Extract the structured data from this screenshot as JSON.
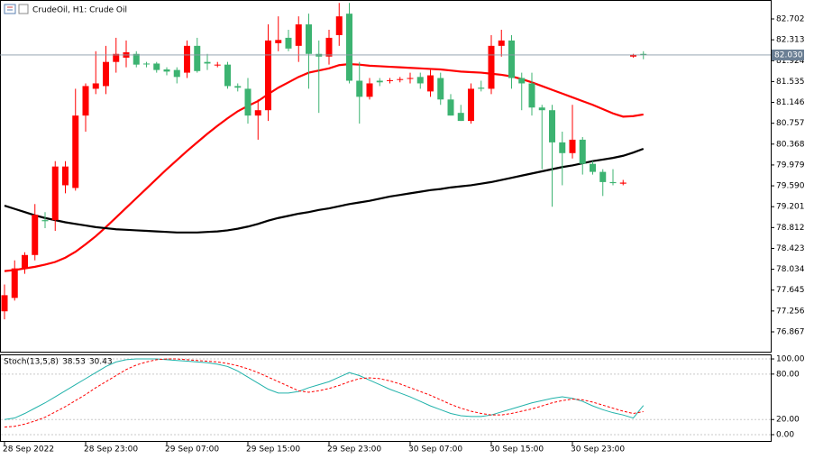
{
  "chart_data": [
    {
      "type": "candlestick",
      "title": "CrudeOil, H1:  Crude Oil",
      "categories": [
        "28 Sep 2022",
        null,
        null,
        null,
        null,
        null,
        null,
        null,
        "28 Sep 23:00",
        null,
        null,
        null,
        null,
        null,
        null,
        null,
        "29 Sep 07:00",
        null,
        null,
        null,
        null,
        null,
        null,
        null,
        "29 Sep 15:00",
        null,
        null,
        null,
        null,
        null,
        null,
        null,
        "29 Sep 23:00",
        null,
        null,
        null,
        null,
        null,
        null,
        null,
        "30 Sep 07:00",
        null,
        null,
        null,
        null,
        null,
        null,
        null,
        "30 Sep 15:00",
        null,
        null,
        null,
        null,
        null,
        null,
        null,
        "30 Sep 23:00",
        null,
        null,
        null,
        null,
        null,
        null,
        null
      ],
      "open": [
        77.25,
        77.5,
        78.05,
        78.3,
        78.95,
        78.95,
        79.6,
        79.55,
        80.9,
        81.4,
        81.45,
        81.9,
        81.98,
        82.05,
        81.87,
        81.87,
        81.76,
        81.75,
        81.7,
        82.2,
        81.9,
        81.84,
        81.85,
        81.45,
        81.4,
        80.9,
        81.0,
        82.25,
        82.35,
        82.2,
        82.6,
        82.05,
        82.0,
        82.4,
        82.8,
        81.55,
        81.25,
        81.55,
        81.55,
        81.57,
        81.6,
        81.62,
        81.35,
        81.6,
        81.2,
        80.95,
        80.8,
        81.42,
        81.4,
        82.2,
        82.3,
        81.6,
        81.5,
        81.05,
        81.0,
        80.4,
        80.2,
        80.45,
        80.0,
        79.85,
        79.66,
        79.63,
        82.0,
        82.05
      ],
      "high": [
        77.75,
        78.2,
        78.35,
        79.25,
        79.1,
        80.05,
        80.05,
        81.4,
        81.5,
        82.1,
        82.2,
        82.35,
        82.3,
        82.1,
        81.9,
        81.9,
        81.8,
        81.8,
        82.3,
        82.35,
        82.05,
        81.9,
        81.9,
        81.5,
        81.6,
        81.2,
        82.6,
        82.75,
        82.5,
        82.75,
        82.8,
        82.3,
        82.5,
        83.0,
        83.0,
        81.9,
        81.6,
        81.6,
        81.6,
        81.62,
        81.7,
        81.7,
        81.75,
        81.7,
        81.3,
        81.1,
        81.5,
        81.55,
        82.4,
        82.5,
        82.4,
        81.7,
        81.7,
        81.1,
        81.1,
        80.6,
        81.1,
        80.5,
        80.05,
        79.9,
        79.9,
        79.7,
        82.05,
        82.1
      ],
      "low": [
        77.1,
        77.45,
        77.95,
        78.2,
        78.8,
        78.75,
        79.45,
        79.5,
        80.6,
        81.3,
        81.3,
        81.7,
        81.8,
        81.8,
        81.8,
        81.7,
        81.65,
        81.5,
        81.6,
        81.7,
        81.75,
        81.8,
        81.4,
        81.35,
        80.75,
        80.45,
        80.8,
        82.1,
        82.1,
        81.9,
        81.4,
        80.95,
        81.85,
        82.2,
        81.5,
        80.75,
        81.2,
        81.45,
        81.5,
        81.52,
        81.5,
        81.4,
        81.25,
        81.1,
        80.9,
        80.8,
        80.75,
        81.35,
        81.3,
        82.0,
        81.4,
        81.0,
        80.9,
        79.9,
        79.2,
        79.6,
        80.1,
        79.8,
        79.8,
        79.4,
        79.6,
        79.6,
        81.98,
        81.95
      ],
      "close": [
        77.55,
        78.05,
        78.3,
        79.05,
        78.93,
        79.95,
        79.95,
        80.9,
        81.45,
        81.5,
        81.9,
        82.05,
        82.08,
        81.85,
        81.86,
        81.75,
        81.72,
        81.62,
        82.2,
        81.73,
        81.87,
        81.85,
        81.45,
        81.42,
        80.9,
        81.0,
        82.3,
        82.31,
        82.15,
        82.6,
        82.05,
        82.0,
        82.35,
        82.75,
        81.55,
        81.25,
        81.5,
        81.52,
        81.56,
        81.58,
        81.6,
        81.5,
        81.65,
        81.2,
        80.9,
        80.8,
        81.4,
        81.4,
        82.2,
        82.3,
        81.6,
        81.5,
        81.05,
        81.0,
        80.4,
        80.2,
        80.45,
        80.0,
        79.85,
        79.66,
        79.64,
        79.65,
        82.03,
        82.03
      ],
      "up_color": "#ff0000",
      "down_color": "#3cb371",
      "overlays": [
        {
          "color": "#ff0000",
          "values": [
            78.0,
            78.02,
            78.05,
            78.08,
            78.12,
            78.17,
            78.25,
            78.36,
            78.5,
            78.65,
            78.82,
            79.0,
            79.18,
            79.36,
            79.54,
            79.72,
            79.9,
            80.07,
            80.24,
            80.4,
            80.56,
            80.71,
            80.85,
            80.98,
            81.08,
            81.17,
            81.3,
            81.42,
            81.52,
            81.62,
            81.7,
            81.74,
            81.78,
            81.84,
            81.86,
            81.85,
            81.83,
            81.82,
            81.81,
            81.8,
            81.79,
            81.78,
            81.77,
            81.76,
            81.74,
            81.72,
            81.71,
            81.7,
            81.68,
            81.66,
            81.63,
            81.58,
            81.52,
            81.45,
            81.38,
            81.31,
            81.24,
            81.17,
            81.1,
            81.02,
            80.94,
            80.88,
            80.89,
            80.92
          ]
        },
        {
          "color": "#000000",
          "values": [
            79.22,
            79.16,
            79.1,
            79.04,
            78.99,
            78.95,
            78.91,
            78.88,
            78.85,
            78.82,
            78.8,
            78.78,
            78.77,
            78.76,
            78.75,
            78.74,
            78.73,
            78.72,
            78.72,
            78.72,
            78.73,
            78.74,
            78.76,
            78.79,
            78.83,
            78.88,
            78.94,
            78.99,
            79.03,
            79.07,
            79.1,
            79.14,
            79.17,
            79.21,
            79.25,
            79.28,
            79.31,
            79.35,
            79.39,
            79.42,
            79.45,
            79.48,
            79.51,
            79.53,
            79.56,
            79.58,
            79.6,
            79.63,
            79.66,
            79.7,
            79.74,
            79.78,
            79.82,
            79.86,
            79.9,
            79.94,
            79.97,
            80.01,
            80.05,
            80.08,
            80.11,
            80.15,
            80.21,
            80.28
          ]
        }
      ],
      "current_price": {
        "value": 82.03,
        "label": "82.030"
      },
      "ylim": [
        76.497,
        83.055
      ],
      "yticks": [
        82.702,
        82.313,
        81.924,
        81.535,
        81.146,
        80.757,
        80.368,
        79.979,
        {
          "value": 79.59,
          "label": "79.590"
        },
        79.201,
        78.812,
        78.423,
        78.034,
        77.645,
        77.256,
        76.867
      ]
    },
    {
      "type": "line",
      "title": "Stoch(13,5,8)",
      "series": [
        {
          "color": "#20b2aa",
          "values": [
            20,
            22,
            28,
            35,
            42,
            50,
            58,
            66,
            74,
            82,
            90,
            96,
            99,
            100,
            100,
            100,
            99,
            98,
            97,
            96,
            95,
            93,
            90,
            84,
            76,
            68,
            60,
            55,
            55,
            57,
            62,
            66,
            70,
            76,
            82,
            78,
            72,
            66,
            60,
            55,
            50,
            44,
            38,
            33,
            28,
            25,
            24,
            24,
            26,
            30,
            34,
            38,
            42,
            45,
            48,
            50,
            48,
            44,
            38,
            33,
            29,
            26,
            22,
            38.53
          ]
        },
        {
          "color": "#ff0000",
          "dashed": true,
          "values": [
            10,
            11,
            14,
            18,
            23,
            30,
            37,
            45,
            53,
            62,
            70,
            78,
            86,
            92,
            96,
            99,
            100,
            100,
            99,
            98,
            97,
            96,
            94,
            91,
            87,
            82,
            76,
            70,
            64,
            58,
            56,
            58,
            61,
            65,
            70,
            74,
            75,
            74,
            71,
            67,
            62,
            57,
            52,
            46,
            40,
            35,
            31,
            28,
            26,
            26,
            28,
            31,
            34,
            38,
            42,
            45,
            47,
            46,
            43,
            39,
            35,
            31,
            28,
            30.43
          ]
        }
      ],
      "ylim": [
        -9.5,
        106
      ],
      "yticks": [
        {
          "value": 100,
          "label": "100.00"
        },
        {
          "value": 80,
          "label": "80.00"
        },
        {
          "value": 20,
          "label": "20.00"
        },
        {
          "value": 0,
          "label": "0.00"
        }
      ],
      "grid": true
    }
  ]
}
